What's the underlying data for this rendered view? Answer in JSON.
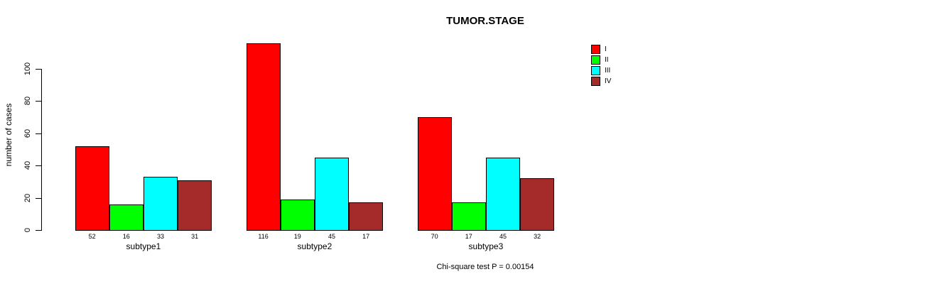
{
  "chart_data": {
    "type": "bar",
    "grouped": true,
    "title": "TUMOR.STAGE",
    "ylabel": "number of cases",
    "xlabel": "",
    "categories": [
      "subtype1",
      "subtype2",
      "subtype3"
    ],
    "series": [
      {
        "name": "I",
        "color": "#FF0000",
        "values": [
          52,
          116,
          70
        ]
      },
      {
        "name": "II",
        "color": "#00FF00",
        "values": [
          16,
          19,
          17
        ]
      },
      {
        "name": "III",
        "color": "#00FFFF",
        "values": [
          33,
          45,
          45
        ]
      },
      {
        "name": "IV",
        "color": "#A52A2A",
        "values": [
          31,
          17,
          32
        ]
      }
    ],
    "bar_value_labels_shown": true,
    "yticks": [
      0,
      20,
      40,
      60,
      80,
      100
    ],
    "ylim": [
      0,
      120
    ],
    "grid": false,
    "legend_position": "top-right",
    "legend_entries": [
      "I",
      "II",
      "III",
      "IV"
    ],
    "annotation": "Chi-square test P = 0.00154",
    "bar_border_color": "#000000",
    "axis_color": "#000000",
    "background_color": "#FFFFFF"
  }
}
